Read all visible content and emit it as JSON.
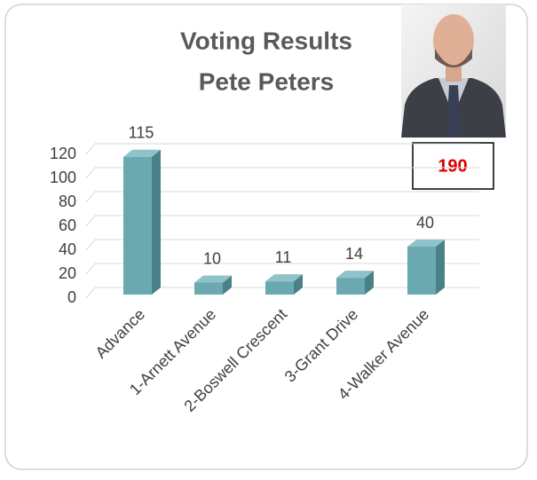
{
  "chart_data": {
    "type": "bar3d",
    "title": "Voting Results",
    "subtitle": "Pete Peters",
    "categories": [
      "Advance",
      "1-Arnett Avenue",
      "2-Boswell Crescent",
      "3-Grant Drive",
      "4-Walker Avenue"
    ],
    "values": [
      115,
      10,
      11,
      14,
      40
    ],
    "color": "#6aa9b0",
    "ylim": [
      0,
      120
    ],
    "yticks": [
      0,
      20,
      40,
      60,
      80,
      100,
      120
    ],
    "grid": true,
    "total": 190,
    "total_color": "#e00000"
  }
}
